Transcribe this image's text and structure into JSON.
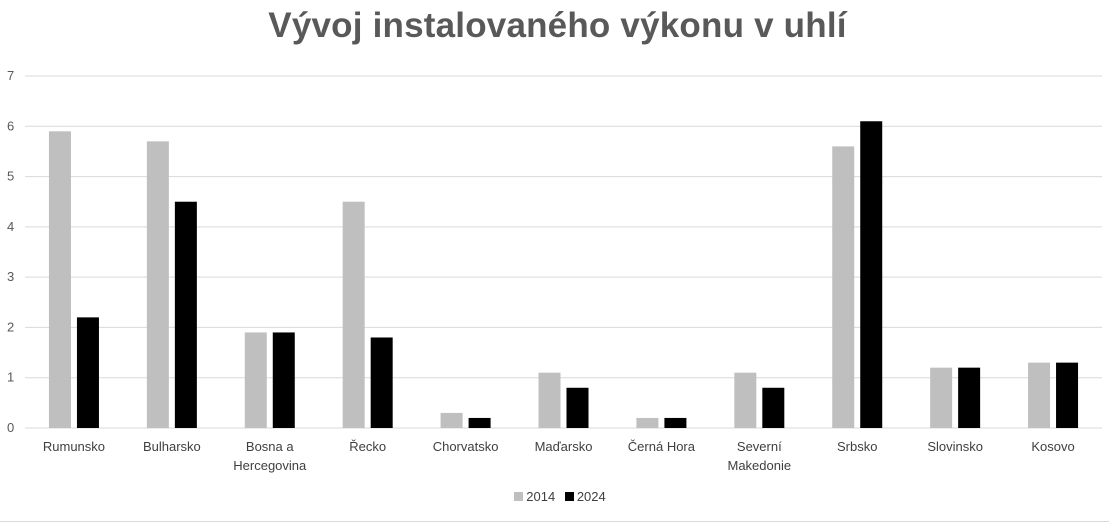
{
  "chart_data": {
    "type": "bar",
    "title": "Vývoj instalovaného výkonu v uhlí",
    "categories": [
      [
        "Rumunsko"
      ],
      [
        "Bulharsko"
      ],
      [
        "Bosna a",
        "Hercegovina"
      ],
      [
        "Řecko"
      ],
      [
        "Chorvatsko"
      ],
      [
        "Maďarsko"
      ],
      [
        "Černá Hora"
      ],
      [
        "Severní",
        "Makedonie"
      ],
      [
        "Srbsko"
      ],
      [
        "Slovinsko"
      ],
      [
        "Kosovo"
      ]
    ],
    "series": [
      {
        "name": "2014",
        "color": "#bfbfbf",
        "values": [
          5.9,
          5.7,
          1.9,
          4.5,
          0.3,
          1.1,
          0.2,
          1.1,
          5.6,
          1.2,
          1.3
        ]
      },
      {
        "name": "2024",
        "color": "#000000",
        "values": [
          2.2,
          4.5,
          1.9,
          1.8,
          0.2,
          0.8,
          0.2,
          0.8,
          6.1,
          1.2,
          1.3
        ]
      }
    ],
    "ylim": [
      0,
      7
    ],
    "yticks": [
      0,
      1,
      2,
      3,
      4,
      5,
      6,
      7
    ],
    "grid": true,
    "legend": "bottom",
    "xlabel": "",
    "ylabel": ""
  }
}
